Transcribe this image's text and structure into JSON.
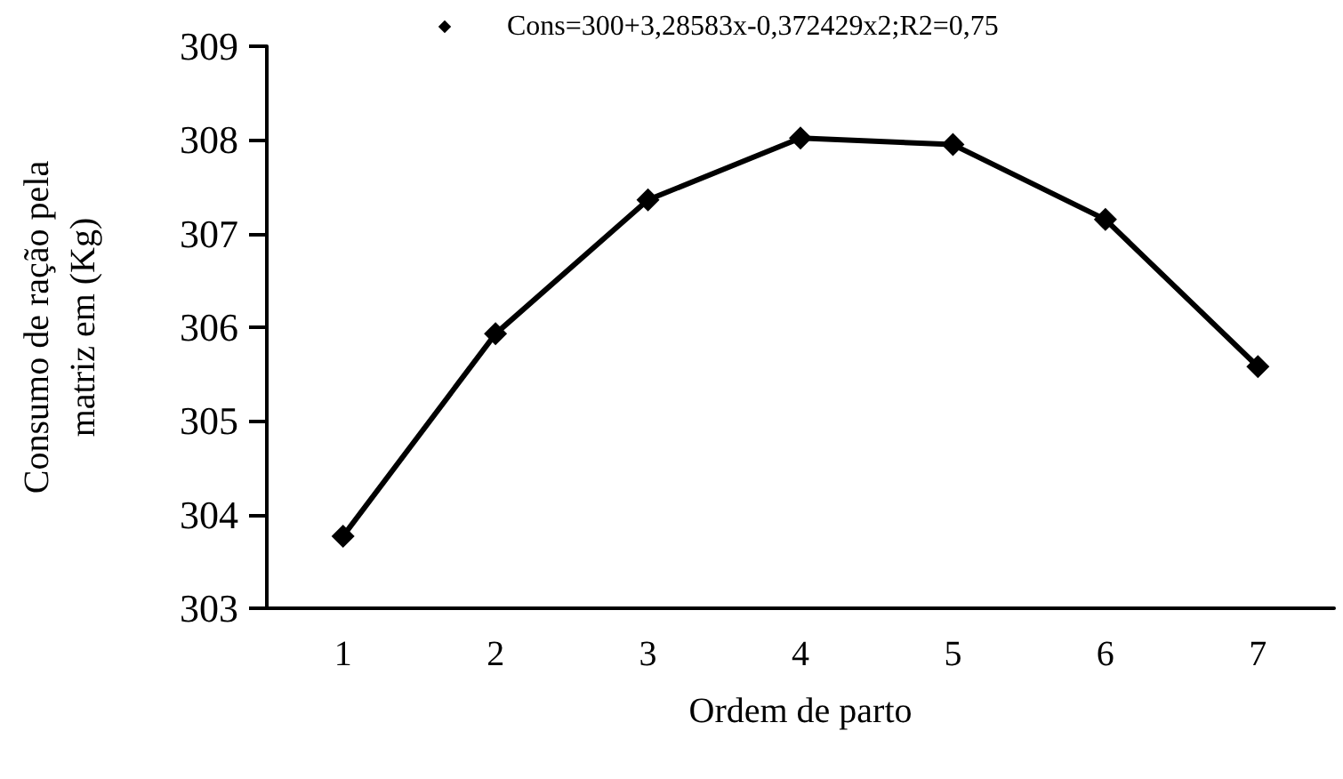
{
  "chart_data": {
    "type": "line",
    "xlabel": "Ordem de parto",
    "ylabel": "Consumo de ração pela\nmatriz em (Kg)",
    "categories": [
      "1",
      "2",
      "3",
      "4",
      "5",
      "6",
      "7"
    ],
    "series": [
      {
        "name": "Cons=300+3,28583x-0,372429x2;R2=0,75",
        "color": "#000000",
        "values": [
          303.77,
          305.93,
          307.36,
          308.02,
          307.95,
          307.15,
          305.58
        ]
      }
    ],
    "ylim": [
      303,
      309
    ],
    "yticks": [
      303,
      304,
      305,
      306,
      307,
      308,
      309
    ],
    "grid": false,
    "legend": "top",
    "marker": "diamond",
    "line_style": "solid"
  }
}
